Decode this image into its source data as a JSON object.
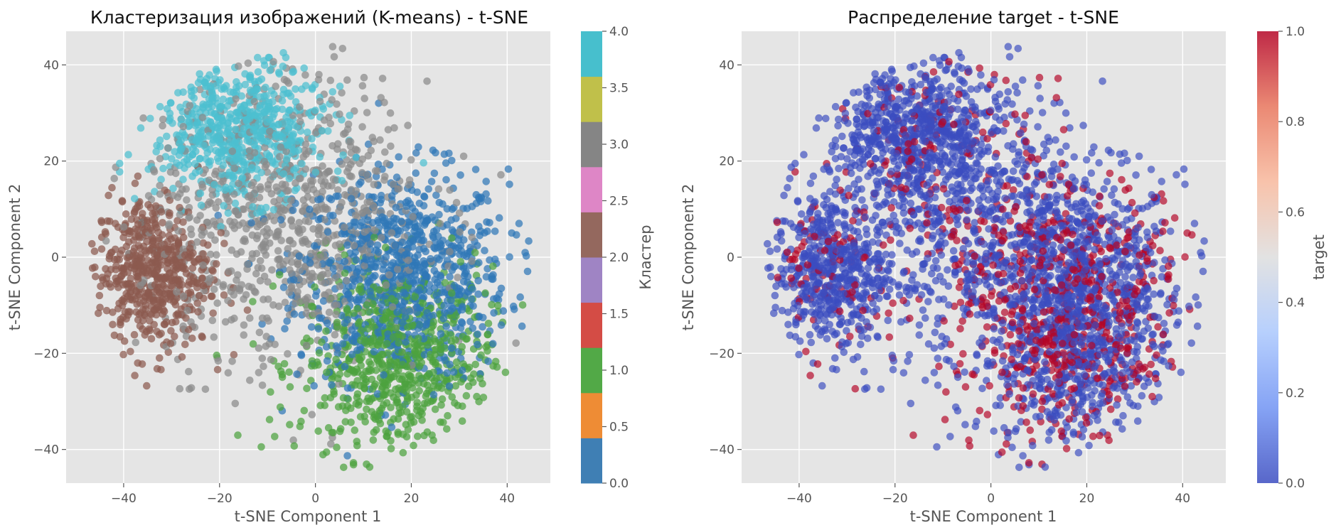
{
  "chart_data": [
    {
      "type": "scatter",
      "title": "Кластеризация изображений (K-means) - t-SNE",
      "xlabel": "t-SNE Component 1",
      "ylabel": "t-SNE Component 2",
      "xlim": [
        -52,
        49
      ],
      "ylim": [
        -47,
        47
      ],
      "xticks": [
        -40,
        -20,
        0,
        20,
        40
      ],
      "yticks": [
        -40,
        -20,
        0,
        20,
        40
      ],
      "grid": true,
      "color_by": "cluster",
      "colorbar": {
        "label": "Кластер",
        "range": [
          0,
          4
        ],
        "ticks": [
          "0.0",
          "0.5",
          "1.0",
          "1.5",
          "2.0",
          "2.5",
          "3.0",
          "3.5",
          "4.0"
        ],
        "colormap": "tab10 (discrete)",
        "colors": [
          "#3f7fb4",
          "#ee8c35",
          "#52a947",
          "#d44c45",
          "#9f84c4",
          "#94685e",
          "#de86c6",
          "#858585",
          "#c0c04a",
          "#47bfcd"
        ]
      },
      "series": [
        {
          "cluster": 0,
          "color": "#2f77b7",
          "center": [
            18,
            -4
          ],
          "spread": [
            11,
            11
          ],
          "approx_points": 900
        },
        {
          "cluster": 1,
          "color": "#4ca23f",
          "center": [
            17,
            -22
          ],
          "spread": [
            10,
            10
          ],
          "approx_points": 750
        },
        {
          "cluster": 2,
          "color": "#8c5a4f",
          "center": [
            -34,
            -3
          ],
          "spread": [
            6,
            8
          ],
          "approx_points": 550
        },
        {
          "cluster": 3,
          "color": "#8a8a8a",
          "center": [
            -6,
            8
          ],
          "spread": [
            15,
            15
          ],
          "approx_points": 900
        },
        {
          "cluster": 4,
          "color": "#4cbfd0",
          "center": [
            -16,
            26
          ],
          "spread": [
            9,
            7
          ],
          "approx_points": 650
        }
      ]
    },
    {
      "type": "scatter",
      "title": "Распределение target - t-SNE",
      "xlabel": "t-SNE Component 1",
      "ylabel": "t-SNE Component 2",
      "xlim": [
        -52,
        49
      ],
      "ylim": [
        -47,
        47
      ],
      "xticks": [
        -40,
        -20,
        0,
        20,
        40
      ],
      "yticks": [
        -40,
        -20,
        0,
        20,
        40
      ],
      "grid": true,
      "color_by": "target",
      "colorbar": {
        "label": "target",
        "range": [
          0,
          1
        ],
        "ticks": [
          "0.0",
          "0.2",
          "0.4",
          "0.6",
          "0.8",
          "1.0"
        ],
        "colormap": "coolwarm",
        "colors": [
          "#3b4cc0",
          "#7093f3",
          "#aac7fd",
          "#dddddd",
          "#f7b89c",
          "#e7745b",
          "#b40426"
        ]
      },
      "series": [
        {
          "target": 0,
          "color": "#3b4cc0",
          "share": 0.8
        },
        {
          "target": 1,
          "color": "#b40426",
          "share": 0.2
        }
      ]
    }
  ],
  "tick_labels": {
    "x": [
      "−40",
      "−20",
      "0",
      "20",
      "40"
    ],
    "y": [
      "−40",
      "−20",
      "0",
      "20",
      "40"
    ]
  }
}
